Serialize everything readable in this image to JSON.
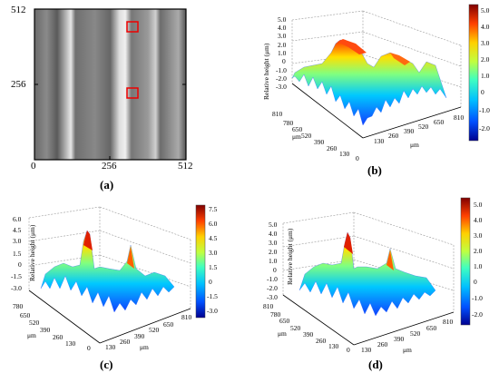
{
  "panel_a": {
    "caption": "(a)",
    "y_ticks": [
      "512",
      "256",
      "0"
    ],
    "x_ticks": [
      "256",
      "512"
    ]
  },
  "panel_b": {
    "caption": "(b)",
    "zlabel": "Relative height (μm)",
    "z_ticks": [
      "5.0",
      "4.0",
      "3.0",
      "2.0",
      "1.0",
      "0",
      "-1.0",
      "-2.0",
      "-3.0"
    ],
    "x_ticks": [
      "810",
      "780",
      "650",
      "520",
      "390",
      "260",
      "130",
      "0"
    ],
    "y_ticks": [
      "130",
      "260",
      "390",
      "520",
      "650",
      "810"
    ],
    "x_unit": "μm",
    "y_unit": "μm",
    "colorbar_ticks": [
      "5.0",
      "4.0",
      "3.0",
      "2.0",
      "1.0",
      "0",
      "-1.0",
      "-2.0"
    ]
  },
  "panel_c": {
    "caption": "(c)",
    "zlabel": "Relative height (μm)",
    "z_ticks": [
      "6.0",
      "4.5",
      "3.0",
      "1.5",
      "0",
      "-1.5",
      "-3.0"
    ],
    "x_ticks": [
      "780",
      "650",
      "520",
      "390",
      "260",
      "130",
      "0"
    ],
    "y_ticks": [
      "130",
      "260",
      "390",
      "520",
      "650",
      "810"
    ],
    "x_unit": "μm",
    "y_unit": "μm",
    "colorbar_ticks": [
      "7.5",
      "6.0",
      "4.5",
      "3.0",
      "1.5",
      "0",
      "-1.5",
      "-3.0"
    ]
  },
  "panel_d": {
    "caption": "(d)",
    "zlabel": "Relative height (μm)",
    "z_ticks": [
      "5.0",
      "4.0",
      "3.0",
      "2.0",
      "1.0",
      "0",
      "-1.0",
      "-2.0",
      "-3.0"
    ],
    "x_ticks": [
      "810",
      "780",
      "650",
      "520",
      "390",
      "260",
      "130",
      "0"
    ],
    "y_ticks": [
      "130",
      "260",
      "390",
      "520",
      "650",
      "810"
    ],
    "x_unit": "μm",
    "y_unit": "μm",
    "colorbar_ticks": [
      "5.0",
      "4.0",
      "3.0",
      "2.0",
      "1.0",
      "0",
      "-1.0",
      "-2.0"
    ]
  },
  "colors": {
    "colormap": [
      "#00008f",
      "#0050ff",
      "#00c0ff",
      "#40ffbf",
      "#c0ff40",
      "#ffd000",
      "#ff4000",
      "#800000"
    ]
  }
}
